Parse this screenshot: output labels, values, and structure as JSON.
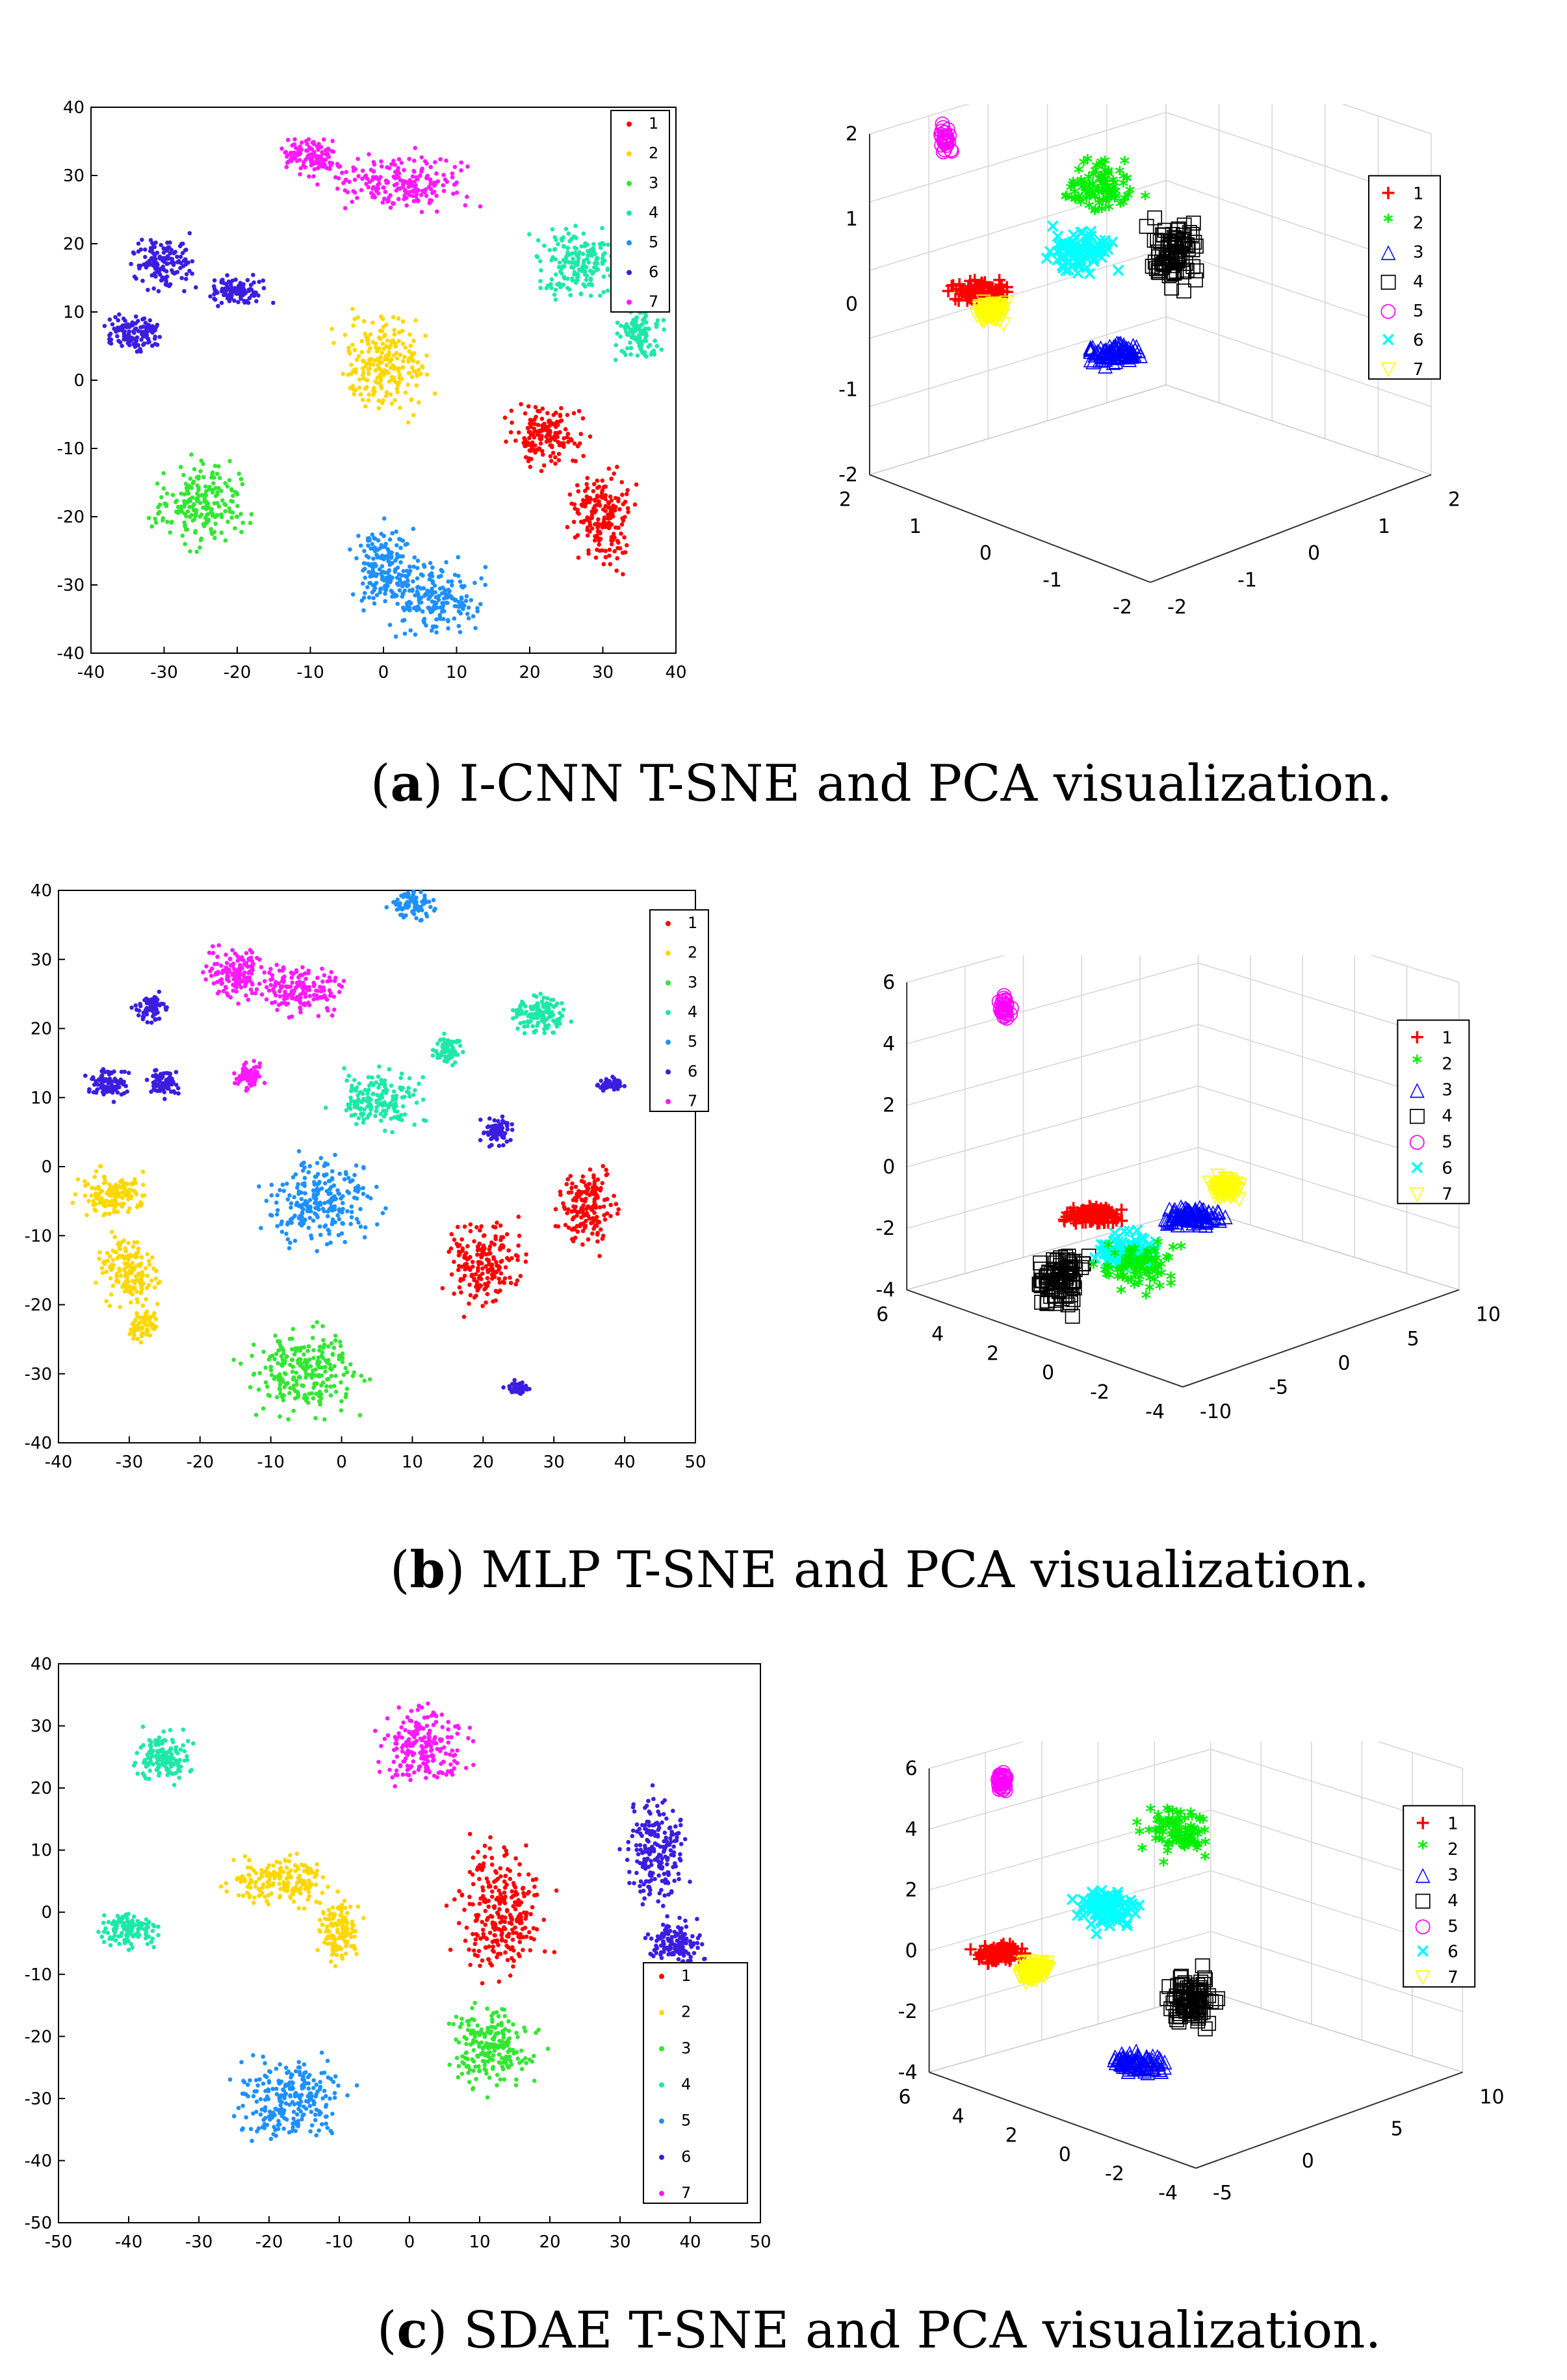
{
  "captions": [
    {
      "letter": "a",
      "text": " I-CNN T-SNE and PCA visualization."
    },
    {
      "letter": "b",
      "text": " MLP T-SNE and PCA visualization."
    },
    {
      "letter": "c",
      "text": " SDAE T-SNE and PCA visualization."
    }
  ],
  "colors": {
    "1": "#ff0000",
    "2": "#ffd700",
    "3": "#33e633",
    "4": "#1ee8a8",
    "5": "#1e90ff",
    "6": "#3a1ee0",
    "7": "#ff1aff"
  },
  "colors3d": {
    "1": "#ff0000",
    "2": "#00ee00",
    "3": "#0000ff",
    "4": "#000000",
    "5": "#ff00ff",
    "6": "#00ffff",
    "7": "#ffff00"
  },
  "chart_data": [
    {
      "id": "a-tsne",
      "type": "scatter",
      "title": "I-CNN T-SNE",
      "xlim": [
        -40,
        40
      ],
      "ylim": [
        -40,
        40
      ],
      "xticks": [
        "-40",
        "-30",
        "-20",
        "-10",
        "0",
        "10",
        "20",
        "30",
        "40"
      ],
      "yticks": [
        "40",
        "30",
        "20",
        "10",
        "0",
        "-10",
        "-20",
        "-30",
        "-40"
      ],
      "legend": [
        "1",
        "2",
        "3",
        "4",
        "5",
        "6",
        "7"
      ],
      "series": [
        {
          "name": "1",
          "clusters": [
            [
              22,
              -8,
              5,
              4
            ],
            [
              30,
              -20,
              4,
              7
            ]
          ]
        },
        {
          "name": "2",
          "clusters": [
            [
              0,
              2,
              6,
              7
            ]
          ]
        },
        {
          "name": "3",
          "clusters": [
            [
              -25,
              -18,
              6,
              6
            ]
          ]
        },
        {
          "name": "4",
          "clusters": [
            [
              27,
              17,
              6,
              5
            ],
            [
              35,
              7,
              3,
              4
            ]
          ]
        },
        {
          "name": "5",
          "clusters": [
            [
              0,
              -27,
              4,
              6
            ],
            [
              7,
              -32,
              6,
              5
            ]
          ]
        },
        {
          "name": "6",
          "clusters": [
            [
              -30,
              17,
              4,
              4
            ],
            [
              -34,
              7,
              4,
              3
            ],
            [
              -20,
              13,
              4,
              2
            ]
          ]
        },
        {
          "name": "7",
          "clusters": [
            [
              -10,
              33,
              4,
              3
            ],
            [
              2,
              29,
              9,
              4
            ]
          ]
        }
      ]
    },
    {
      "id": "a-pca",
      "type": "scatter3d",
      "title": "I-CNN PCA",
      "zticks": [
        "2",
        "1",
        "0",
        "-1",
        "-2"
      ],
      "yticks": [
        "2",
        "1",
        "0",
        "-1",
        "-2"
      ],
      "xticks": [
        "-2",
        "-1",
        "0",
        "1",
        "2"
      ],
      "legend": [
        "1",
        "2",
        "3",
        "4",
        "5",
        "6",
        "7"
      ],
      "markers": [
        "+",
        "*",
        "△",
        "□",
        "○",
        "×",
        "▽"
      ]
    },
    {
      "id": "b-tsne",
      "type": "scatter",
      "title": "MLP T-SNE",
      "xlim": [
        -40,
        50
      ],
      "ylim": [
        -40,
        40
      ],
      "xticks": [
        "-40",
        "-30",
        "-20",
        "-10",
        "0",
        "10",
        "20",
        "30",
        "40",
        "50"
      ],
      "yticks": [
        "40",
        "30",
        "20",
        "10",
        "0",
        "-10",
        "-20",
        "-30",
        "-40"
      ],
      "legend": [
        "1",
        "2",
        "3",
        "4",
        "5",
        "6",
        "7"
      ],
      "series": [
        {
          "name": "1",
          "clusters": [
            [
              20,
              -14,
              5,
              6
            ],
            [
              35,
              -6,
              4,
              6
            ]
          ]
        },
        {
          "name": "2",
          "clusters": [
            [
              -32,
              -4,
              5,
              3
            ],
            [
              -30,
              -15,
              4,
              5
            ],
            [
              -28,
              -23,
              2,
              2
            ]
          ]
        },
        {
          "name": "3",
          "clusters": [
            [
              -5,
              -30,
              8,
              6
            ]
          ]
        },
        {
          "name": "4",
          "clusters": [
            [
              5,
              10,
              6,
              4
            ],
            [
              28,
              22,
              4,
              3
            ],
            [
              15,
              17,
              2,
              2
            ]
          ]
        },
        {
          "name": "5",
          "clusters": [
            [
              -3,
              -5,
              8,
              6
            ],
            [
              10,
              38,
              3,
              2
            ]
          ]
        },
        {
          "name": "6",
          "clusters": [
            [
              -33,
              12,
              3,
              2
            ],
            [
              -27,
              23,
              2,
              2
            ],
            [
              -25,
              12,
              2,
              2
            ],
            [
              22,
              5,
              2,
              2
            ],
            [
              38,
              12,
              2,
              1
            ],
            [
              25,
              -32,
              2,
              1
            ]
          ]
        },
        {
          "name": "7",
          "clusters": [
            [
              -15,
              28,
              4,
              4
            ],
            [
              -6,
              26,
              6,
              4
            ],
            [
              -13,
              13,
              2,
              2
            ]
          ]
        }
      ]
    },
    {
      "id": "b-pca",
      "type": "scatter3d",
      "title": "MLP PCA",
      "zticks": [
        "6",
        "4",
        "2",
        "0",
        "-2",
        "-4"
      ],
      "yticks": [
        "6",
        "4",
        "2",
        "0",
        "-2",
        "-4"
      ],
      "xticks": [
        "-10",
        "-5",
        "0",
        "5",
        "10"
      ],
      "legend": [
        "1",
        "2",
        "3",
        "4",
        "5",
        "6",
        "7"
      ],
      "markers": [
        "+",
        "*",
        "△",
        "□",
        "○",
        "×",
        "▽"
      ]
    },
    {
      "id": "c-tsne",
      "type": "scatter",
      "title": "SDAE T-SNE",
      "xlim": [
        -50,
        50
      ],
      "ylim": [
        -50,
        40
      ],
      "xticks": [
        "-50",
        "-40",
        "-30",
        "-20",
        "-10",
        "0",
        "10",
        "20",
        "30",
        "40",
        "50"
      ],
      "yticks": [
        "40",
        "30",
        "20",
        "10",
        "0",
        "-10",
        "-20",
        "-30",
        "-40",
        "-50"
      ],
      "legend": [
        "1",
        "2",
        "3",
        "4",
        "5",
        "6",
        "7"
      ],
      "series": [
        {
          "name": "1",
          "clusters": [
            [
              13,
              0,
              6,
              10
            ]
          ]
        },
        {
          "name": "2",
          "clusters": [
            [
              -18,
              5,
              7,
              4
            ],
            [
              -10,
              -3,
              3,
              5
            ]
          ]
        },
        {
          "name": "3",
          "clusters": [
            [
              12,
              -22,
              6,
              6
            ]
          ]
        },
        {
          "name": "4",
          "clusters": [
            [
              -35,
              25,
              4,
              4
            ],
            [
              -40,
              -3,
              4,
              3
            ]
          ]
        },
        {
          "name": "5",
          "clusters": [
            [
              -17,
              -30,
              8,
              6
            ]
          ]
        },
        {
          "name": "6",
          "clusters": [
            [
              35,
              10,
              4,
              9
            ],
            [
              38,
              -5,
              4,
              4
            ]
          ]
        },
        {
          "name": "7",
          "clusters": [
            [
              2,
              27,
              6,
              6
            ]
          ]
        }
      ]
    },
    {
      "id": "c-pca",
      "type": "scatter3d",
      "title": "SDAE PCA",
      "zticks": [
        "6",
        "4",
        "2",
        "0",
        "-2",
        "-4"
      ],
      "yticks": [
        "6",
        "4",
        "2",
        "0",
        "-2",
        "-4"
      ],
      "xticks": [
        "-5",
        "0",
        "5",
        "10"
      ],
      "legend": [
        "1",
        "2",
        "3",
        "4",
        "5",
        "6",
        "7"
      ],
      "markers": [
        "+",
        "*",
        "△",
        "□",
        "○",
        "×",
        "▽"
      ]
    }
  ]
}
